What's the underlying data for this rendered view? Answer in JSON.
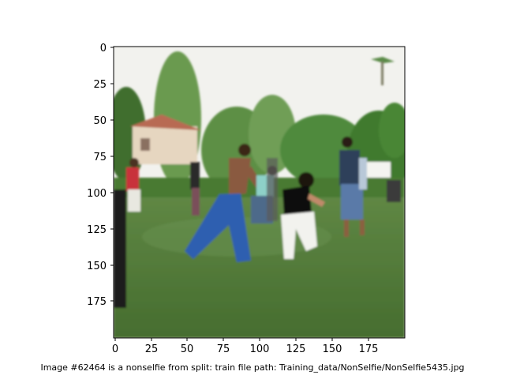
{
  "axes": {
    "x_ticks": [
      "0",
      "25",
      "50",
      "75",
      "100",
      "125",
      "150",
      "175"
    ],
    "y_ticks": [
      "0",
      "25",
      "50",
      "75",
      "100",
      "125",
      "150",
      "175"
    ]
  },
  "caption": "Image #62464 is a nonselfie from split: train file path: Training_data/NonSelfie/NonSelfie5435.jpg",
  "colors": {
    "sky": "#f2f2ee",
    "grass": "#557a3a",
    "trees": "#4f8a3c"
  }
}
